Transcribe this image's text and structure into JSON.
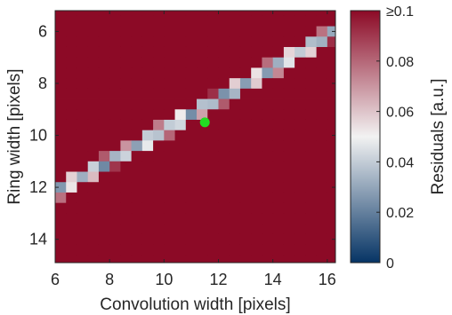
{
  "chart_data": {
    "type": "heatmap",
    "title": "",
    "xlabel": "Convolution width [pixels]",
    "ylabel": "Ring width [pixels]",
    "colorbar_label": "Residuals [a.u.]",
    "xlim": [
      6,
      16.3
    ],
    "ylim": [
      14.9,
      5.2
    ],
    "x_ticks": [
      6,
      8,
      10,
      12,
      14,
      16
    ],
    "y_ticks": [
      6,
      8,
      10,
      12,
      14
    ],
    "colorbar_ticks": [
      {
        "value": 0,
        "label": "0"
      },
      {
        "value": 0.02,
        "label": "0.02"
      },
      {
        "value": 0.04,
        "label": "0.04"
      },
      {
        "value": 0.06,
        "label": "0.06"
      },
      {
        "value": 0.08,
        "label": "0.08"
      },
      {
        "value": 0.1,
        "label": "≥0.1"
      }
    ],
    "colorbar_range": [
      0,
      0.1
    ],
    "x_start": 6,
    "x_step": 0.4,
    "y_start": 5.4,
    "y_step": 0.4,
    "best_fit": {
      "x": 11.5,
      "y": 9.5
    },
    "marker_color": "#22dd22",
    "valley": {
      "y_at_x6": 12.2,
      "slope": -0.6,
      "depth": 0.028,
      "width": 0.5,
      "ramp": 0.13
    },
    "colors": {
      "low": "#063465",
      "mid": "#f2f2f2",
      "high": "#8c0a26"
    }
  }
}
